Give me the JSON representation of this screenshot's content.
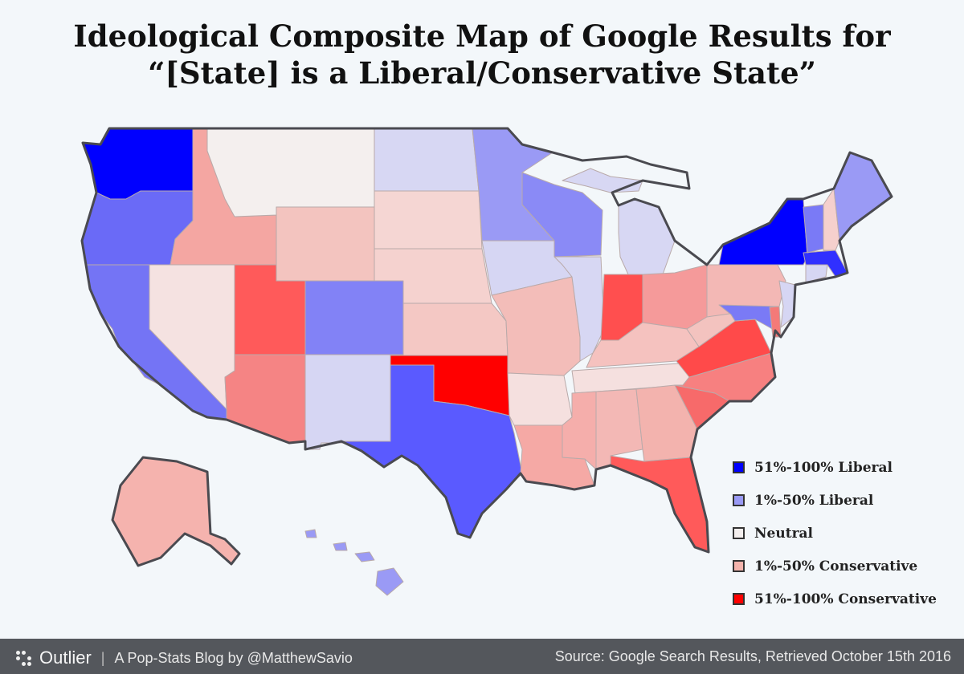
{
  "title": {
    "line1": "Ideological Composite Map of Google Results for",
    "line2": "“[State] is a Liberal/Conservative State”"
  },
  "colors": {
    "liberal_strong": "#0000ff",
    "liberal_mild": "#9a9af5",
    "neutral": "#f4efee",
    "conservative_mild": "#f3b3ac",
    "conservative_strong": "#ff0000"
  },
  "legend": [
    {
      "label": "51%-100% Liberal",
      "color": "#0000ff"
    },
    {
      "label": "1%-50% Liberal",
      "color": "#9a9af5"
    },
    {
      "label": "Neutral",
      "color": "#f4efee"
    },
    {
      "label": "1%-50% Conservative",
      "color": "#f3b3ac"
    },
    {
      "label": "51%-100% Conservative",
      "color": "#ff0000"
    }
  ],
  "states": [
    {
      "name": "Washington",
      "color": "#0000ff"
    },
    {
      "name": "Oregon",
      "color": "#6a6af7"
    },
    {
      "name": "California",
      "color": "#7474f5"
    },
    {
      "name": "Idaho",
      "color": "#f4a6a2"
    },
    {
      "name": "Nevada",
      "color": "#f5e2e1"
    },
    {
      "name": "Montana",
      "color": "#f4efee"
    },
    {
      "name": "Wyoming",
      "color": "#f3c4bf"
    },
    {
      "name": "Utah",
      "color": "#ff5a5a"
    },
    {
      "name": "Arizona",
      "color": "#f58484"
    },
    {
      "name": "Colorado",
      "color": "#8282f6"
    },
    {
      "name": "New Mexico",
      "color": "#d6d6f3"
    },
    {
      "name": "North Dakota",
      "color": "#d7d7f3"
    },
    {
      "name": "South Dakota",
      "color": "#f5d6d3"
    },
    {
      "name": "Nebraska",
      "color": "#f5d2cf"
    },
    {
      "name": "Kansas",
      "color": "#f4c8c4"
    },
    {
      "name": "Oklahoma",
      "color": "#ff0000"
    },
    {
      "name": "Texas",
      "color": "#5a5aff"
    },
    {
      "name": "Minnesota",
      "color": "#9a9af5"
    },
    {
      "name": "Iowa",
      "color": "#d6d6f3"
    },
    {
      "name": "Missouri",
      "color": "#f3bdb9"
    },
    {
      "name": "Arkansas",
      "color": "#f5e0df"
    },
    {
      "name": "Louisiana",
      "color": "#f5a9a5"
    },
    {
      "name": "Wisconsin",
      "color": "#8a8af6"
    },
    {
      "name": "Illinois",
      "color": "#d7d7f3"
    },
    {
      "name": "Michigan",
      "color": "#d7d7f3"
    },
    {
      "name": "Indiana",
      "color": "#ff4f4f"
    },
    {
      "name": "Ohio",
      "color": "#f59a9a"
    },
    {
      "name": "Kentucky",
      "color": "#f5c2bf"
    },
    {
      "name": "Tennessee",
      "color": "#f5e0df"
    },
    {
      "name": "Mississippi",
      "color": "#f5aeab"
    },
    {
      "name": "Alabama",
      "color": "#f3b8b5"
    },
    {
      "name": "Georgia",
      "color": "#f3b3ae"
    },
    {
      "name": "Florida",
      "color": "#ff5a5a"
    },
    {
      "name": "South Carolina",
      "color": "#f76a6a"
    },
    {
      "name": "North Carolina",
      "color": "#f78080"
    },
    {
      "name": "Virginia",
      "color": "#ff4a4a"
    },
    {
      "name": "West Virginia",
      "color": "#f3c3bf"
    },
    {
      "name": "Pennsylvania",
      "color": "#f3b8b5"
    },
    {
      "name": "New York",
      "color": "#0000ff"
    },
    {
      "name": "Maryland",
      "color": "#7a7af6"
    },
    {
      "name": "Delaware",
      "color": "#f47a78"
    },
    {
      "name": "New Jersey",
      "color": "#d6d6f3"
    },
    {
      "name": "Connecticut",
      "color": "#d6d6f3"
    },
    {
      "name": "Massachusetts",
      "color": "#3030ff"
    },
    {
      "name": "Vermont",
      "color": "#7a7af6"
    },
    {
      "name": "New Hampshire",
      "color": "#f5d0cd"
    },
    {
      "name": "Maine",
      "color": "#9a9af5"
    },
    {
      "name": "Alaska",
      "color": "#f5b3ae"
    },
    {
      "name": "Hawaii",
      "color": "#9a9af5"
    }
  ],
  "footer": {
    "brand": "Outlier",
    "separator": "|",
    "tagline": "A Pop-Stats Blog by @MatthewSavio",
    "source": "Source: Google Search Results, Retrieved October 15th 2016"
  }
}
